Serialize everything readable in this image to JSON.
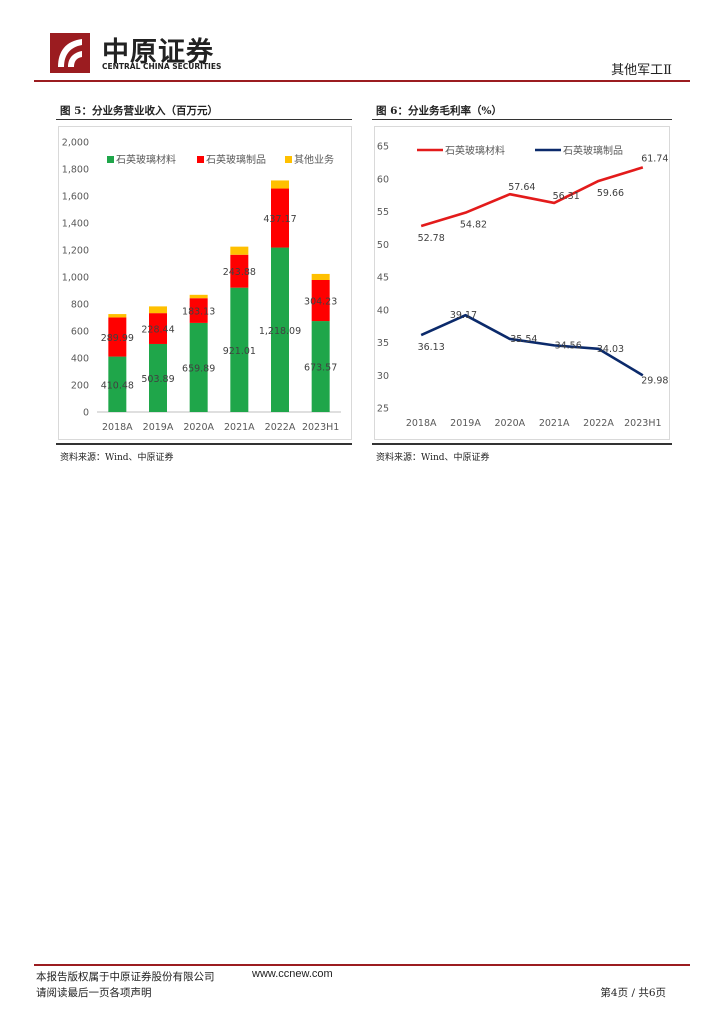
{
  "header": {
    "logo_cn": "中原证券",
    "logo_en": "CENTRAL CHINA SECURITIES",
    "section": "其他军工Ⅱ",
    "brand_color": "#9b1c20"
  },
  "figures": [
    {
      "title": "图 5：分业务营业收入（百万元）",
      "source": "资料来源：Wind、中原证券"
    },
    {
      "title": "图 6：分业务毛利率（%）",
      "source": "资料来源：Wind、中原证券"
    }
  ],
  "chart_data": [
    {
      "type": "bar",
      "stacked": true,
      "categories": [
        "2018A",
        "2019A",
        "2020A",
        "2021A",
        "2022A",
        "2023H1"
      ],
      "y_ticks": [
        "2,000",
        "1,800",
        "1,600",
        "1,400",
        "1,200",
        "1,000",
        "800",
        "600",
        "400",
        "200",
        "0"
      ],
      "ylim": [
        0,
        2000
      ],
      "legend_position": "top",
      "series": [
        {
          "name": "石英玻璃材料",
          "color": "#1fa64a",
          "values": [
            410.48,
            503.89,
            659.89,
            921.01,
            1218.09,
            673.57
          ],
          "labels": [
            "410.48",
            "503.89",
            "659.89",
            "921.01",
            "1,218.09",
            "673.57"
          ]
        },
        {
          "name": "石英玻璃制品",
          "color": "#ff0000",
          "values": [
            289.99,
            228.44,
            183.13,
            243.88,
            437.17,
            304.23
          ],
          "labels": [
            "289.99",
            "228.44",
            "183.13",
            "243.88",
            "437.17",
            "304.23"
          ]
        },
        {
          "name": "其他业务",
          "color": "#ffc000",
          "values": [
            25,
            50,
            25,
            60,
            60,
            45
          ],
          "labels": []
        }
      ]
    },
    {
      "type": "line",
      "categories": [
        "2018A",
        "2019A",
        "2020A",
        "2021A",
        "2022A",
        "2023H1"
      ],
      "y_ticks": [
        "65",
        "60",
        "55",
        "50",
        "45",
        "40",
        "35",
        "30",
        "25"
      ],
      "ylim": [
        25,
        65
      ],
      "legend_position": "top",
      "series": [
        {
          "name": "石英玻璃材料",
          "color": "#e31b1b",
          "values": [
            52.78,
            54.82,
            57.64,
            56.31,
            59.66,
            61.74
          ],
          "labels": [
            "52.78",
            "54.82",
            "57.64",
            "56.31",
            "59.66",
            "61.74"
          ]
        },
        {
          "name": "石英玻璃制品",
          "color": "#0b2a6b",
          "values": [
            36.13,
            39.17,
            35.54,
            34.56,
            34.03,
            29.98
          ],
          "labels": [
            "36.13",
            "39.17",
            "35.54",
            "34.56",
            "34.03",
            "29.98"
          ]
        }
      ]
    }
  ],
  "footer": {
    "copyright": "本报告版权属于中原证券股份有限公司",
    "url": "www.ccnew.com",
    "disclaimer": "请阅读最后一页各项声明",
    "page": "第4页 / 共6页"
  }
}
